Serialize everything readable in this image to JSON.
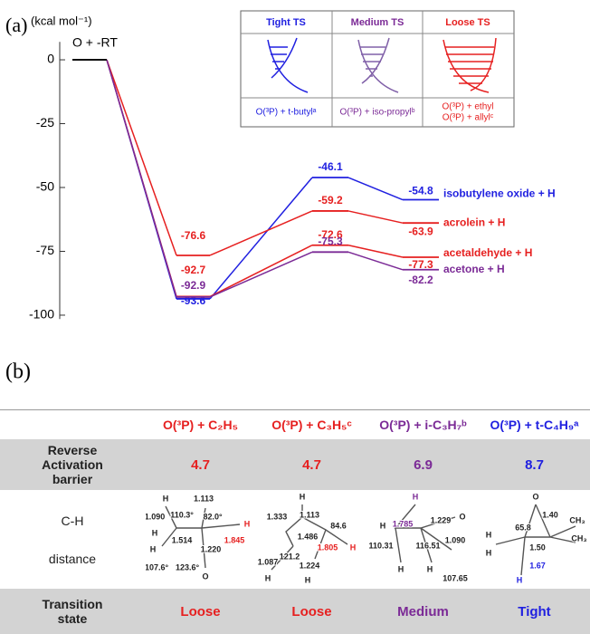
{
  "chart_data": {
    "type": "energy_profile",
    "panel_label": "(a)",
    "ylabel": "(kcal mol⁻¹)",
    "start_label": "O + -RT",
    "ylim": [
      -101.5,
      7
    ],
    "yticks": [
      0,
      -25,
      -50,
      -75,
      -100
    ],
    "series": [
      {
        "name": "isobutylene oxide + H",
        "color": "#2020e0",
        "values": [
          0,
          -93.6,
          -46.1,
          -54.8
        ]
      },
      {
        "name": "acrolein + H",
        "color": "#e62020",
        "values": [
          0,
          -76.6,
          -59.2,
          -63.9
        ]
      },
      {
        "name": "acetaldehyde + H",
        "color": "#e62020",
        "values": [
          0,
          -92.7,
          -72.6,
          -77.3
        ]
      },
      {
        "name": "acetone + H",
        "color": "#7b2a96",
        "values": [
          0,
          -92.9,
          -75.3,
          -82.2
        ]
      }
    ],
    "inset": {
      "headers": [
        {
          "text": "Tight TS",
          "color": "#2020e0"
        },
        {
          "text": "Medium TS",
          "color": "#7b2a96"
        },
        {
          "text": "Loose TS",
          "color": "#e62020"
        }
      ],
      "systems": [
        [
          "O(³P) + t-butylᵃ"
        ],
        [
          "O(³P) + iso-propylᵇ"
        ],
        [
          "O(³P) + ethyl",
          "O(³P) + allylᶜ"
        ]
      ]
    }
  },
  "panel_b": {
    "label": "(b)",
    "table": {
      "columns": [
        {
          "text": "O(³P) + C₂H₅",
          "color": "#e62020"
        },
        {
          "text": "O(³P) + C₃H₅ᶜ",
          "color": "#e62020"
        },
        {
          "text": "O(³P) + i-C₃H₇ᵇ",
          "color": "#7b2a96"
        },
        {
          "text": "O(³P) + t-C₄H₉ᵃ",
          "color": "#2020e0"
        }
      ],
      "barrier": {
        "label": "Reverse Activation barrier",
        "cells": [
          4.7,
          4.7,
          6.9,
          8.7
        ]
      },
      "distance": {
        "label": [
          "C-H",
          "distance"
        ],
        "structures": [
          [
            "H",
            "1.113",
            "1.090",
            "110.3°",
            "82.0°",
            "H",
            "1.845",
            "H",
            "1.514",
            "1.220",
            "H",
            "107.6°",
            "123.6°",
            "O"
          ],
          [
            "H",
            "1.333",
            "1.113",
            "84.6",
            "1.486",
            "1.805",
            "H",
            "1.087",
            "121.2",
            "1.224",
            "H",
            "H"
          ],
          [
            "H",
            "H",
            "1.785",
            "1.229",
            "O",
            "110.31",
            "116.51",
            "1.090",
            "H",
            "H",
            "107.65"
          ],
          [
            "O",
            "1.40",
            "65.8",
            "CH₃",
            "CH₃",
            "1.50",
            "H",
            "H",
            "1.67",
            "H"
          ]
        ]
      },
      "state": {
        "label": "Transition state",
        "cells": [
          "Loose",
          "Loose",
          "Medium",
          "Tight"
        ]
      }
    }
  }
}
